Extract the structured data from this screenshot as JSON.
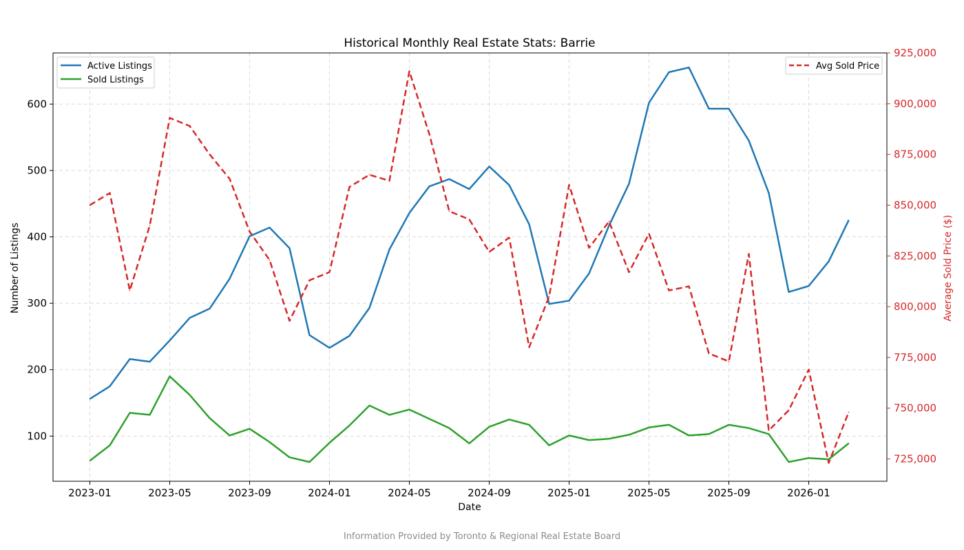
{
  "chart_data": {
    "type": "line",
    "title": "Historical Monthly Real Estate Stats: Barrie",
    "xlabel": "Date",
    "ylabel": "Number of Listings",
    "ylabel_right": "Average Sold Price ($)",
    "footer": "Information Provided by Toronto & Regional Real Estate Board",
    "x": [
      "2023-01",
      "2023-02",
      "2023-03",
      "2023-04",
      "2023-05",
      "2023-06",
      "2023-07",
      "2023-08",
      "2023-09",
      "2023-10",
      "2023-11",
      "2023-12",
      "2024-01",
      "2024-02",
      "2024-03",
      "2024-04",
      "2024-05",
      "2024-06",
      "2024-07",
      "2024-08",
      "2024-09",
      "2024-10",
      "2024-11",
      "2024-12",
      "2025-01",
      "2025-02",
      "2025-03",
      "2025-04",
      "2025-05",
      "2025-06",
      "2025-07",
      "2025-08",
      "2025-09",
      "2025-10",
      "2025-11",
      "2025-12",
      "2026-01",
      "2026-02",
      "2026-03"
    ],
    "xticks": [
      "2023-01",
      "2023-05",
      "2023-09",
      "2024-01",
      "2024-05",
      "2024-09",
      "2025-01",
      "2025-05",
      "2025-09",
      "2026-01"
    ],
    "ylim_left": [
      32,
      677
    ],
    "yticks_left": [
      100,
      200,
      300,
      400,
      500,
      600
    ],
    "ylim_right": [
      714000,
      925000
    ],
    "yticks_right": [
      "725,000",
      "750,000",
      "775,000",
      "800,000",
      "825,000",
      "850,000",
      "875,000",
      "900,000",
      "925,000"
    ],
    "yticks_right_values": [
      725000,
      750000,
      775000,
      800000,
      825000,
      850000,
      875000,
      900000,
      925000
    ],
    "grid": true,
    "legend_left_placement": "top-left",
    "legend_right_placement": "top-right",
    "series": [
      {
        "name": "Active Listings",
        "axis": "left",
        "color": "#1f77b4",
        "dash": "solid",
        "values": [
          156,
          175,
          216,
          212,
          244,
          278,
          292,
          337,
          401,
          414,
          383,
          252,
          233,
          251,
          293,
          381,
          436,
          476,
          487,
          472,
          506,
          478,
          419,
          299,
          304,
          345,
          417,
          480,
          602,
          648,
          655,
          593,
          593,
          545,
          466,
          317,
          326,
          363,
          425
        ]
      },
      {
        "name": "Sold Listings",
        "axis": "left",
        "color": "#2ca02c",
        "dash": "solid",
        "values": [
          63,
          86,
          135,
          132,
          190,
          162,
          127,
          101,
          111,
          91,
          68,
          61,
          90,
          116,
          146,
          132,
          140,
          126,
          112,
          89,
          114,
          125,
          117,
          86,
          101,
          94,
          96,
          102,
          113,
          117,
          101,
          103,
          117,
          112,
          103,
          61,
          67,
          65,
          89
        ]
      },
      {
        "name": "Avg Sold Price",
        "axis": "right",
        "color": "#d62728",
        "dash": "dashed",
        "values": [
          850000,
          856000,
          808000,
          840000,
          893000,
          889000,
          875000,
          863000,
          837000,
          823000,
          793000,
          813000,
          817000,
          859000,
          865000,
          862000,
          916000,
          885000,
          847000,
          843000,
          827000,
          834000,
          780000,
          805000,
          860000,
          829000,
          842000,
          817000,
          836000,
          808000,
          810000,
          777000,
          773000,
          826000,
          739000,
          749000,
          769000,
          723000,
          748000
        ]
      }
    ]
  }
}
